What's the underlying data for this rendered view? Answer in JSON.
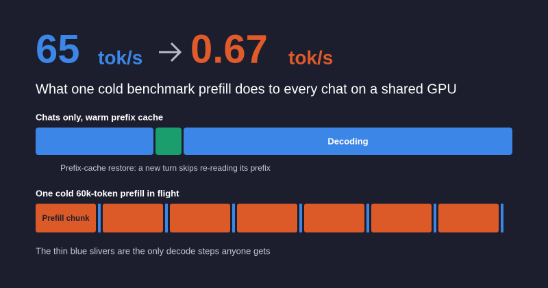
{
  "headline": {
    "before_value": 65,
    "before_unit": "tok/s",
    "after_value": 0.67,
    "after_unit": "tok/s"
  },
  "subtitle": "What one cold benchmark prefill does to every chat on a shared GPU",
  "warm": {
    "label": "Chats only, warm prefix cache",
    "decoding": "Decoding",
    "annotation": "Prefix-cache restore: a new turn skips re-reading its prefix"
  },
  "cold": {
    "label": "One cold 60k-token prefill in flight",
    "chunk": "Prefill chunk"
  },
  "footer": "The thin blue slivers are the only decode steps anyone gets"
}
